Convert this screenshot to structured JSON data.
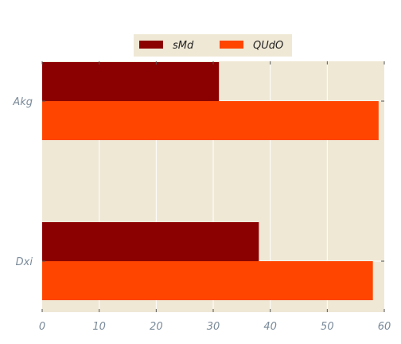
{
  "chart_data": {
    "type": "bar",
    "orientation": "horizontal",
    "categories": [
      "Akg",
      "Dxi"
    ],
    "series": [
      {
        "name": "sMd",
        "values": [
          31,
          38
        ],
        "color": "#8b0000"
      },
      {
        "name": "QUdO",
        "values": [
          59,
          58
        ],
        "color": "#ff4500"
      }
    ],
    "xlim": [
      0,
      60
    ],
    "xticks": [
      0,
      10,
      20,
      30,
      40,
      50,
      60
    ],
    "grid": true,
    "legend_position": "top-center",
    "plot_background": "#efe8d5",
    "grid_color": "#ffffff",
    "tick_label_color": "#7a8a99"
  }
}
